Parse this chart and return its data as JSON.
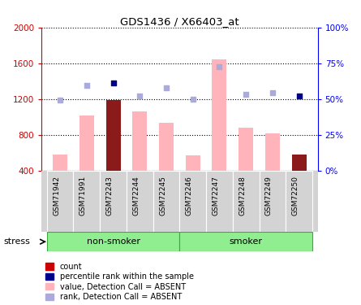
{
  "title": "GDS1436 / X66403_at",
  "samples": [
    "GSM71942",
    "GSM71991",
    "GSM72243",
    "GSM72244",
    "GSM72245",
    "GSM72246",
    "GSM72247",
    "GSM72248",
    "GSM72249",
    "GSM72250"
  ],
  "groups": [
    {
      "label": "non-smoker",
      "start": 0,
      "end": 5
    },
    {
      "label": "smoker",
      "start": 5,
      "end": 10
    }
  ],
  "bar_values": [
    580,
    1020,
    1190,
    1060,
    940,
    570,
    1640,
    880,
    820,
    580
  ],
  "bar_colors": [
    "#ffb3ba",
    "#ffb3ba",
    "#8b1a1a",
    "#ffb3ba",
    "#ffb3ba",
    "#ffb3ba",
    "#ffb3ba",
    "#ffb3ba",
    "#ffb3ba",
    "#8b1a1a"
  ],
  "rank_dots": [
    1190,
    1350,
    1380,
    1235,
    1330,
    1200,
    1560,
    1255,
    1275,
    1235
  ],
  "rank_dot_colors": [
    "#aaaadd",
    "#aaaadd",
    "#00008b",
    "#aaaadd",
    "#aaaadd",
    "#aaaadd",
    "#aaaadd",
    "#aaaadd",
    "#aaaadd",
    "#00008b"
  ],
  "ylim_left": [
    400,
    2000
  ],
  "ylim_right": [
    0,
    100
  ],
  "yticks_left": [
    400,
    800,
    1200,
    1600,
    2000
  ],
  "yticks_right": [
    0,
    25,
    50,
    75,
    100
  ],
  "ytick_labels_right": [
    "0%",
    "25%",
    "50%",
    "75%",
    "100%"
  ],
  "legend_items": [
    {
      "color": "#cc0000",
      "label": "count"
    },
    {
      "color": "#00008b",
      "label": "percentile rank within the sample"
    },
    {
      "color": "#ffb3ba",
      "label": "value, Detection Call = ABSENT"
    },
    {
      "color": "#aaaadd",
      "label": "rank, Detection Call = ABSENT"
    }
  ],
  "stress_label": "stress",
  "baseline": 400,
  "bar_width": 0.55
}
